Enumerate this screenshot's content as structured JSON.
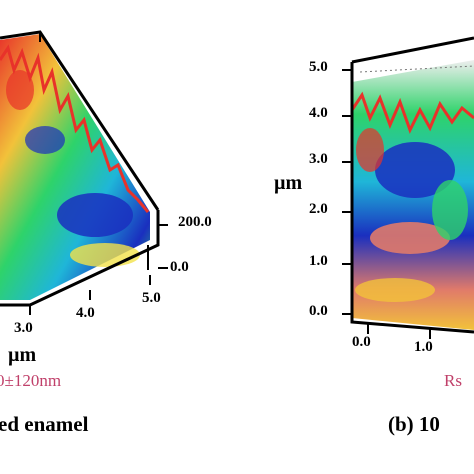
{
  "left_panel": {
    "z_ticks": [
      "200.0",
      "0.0"
    ],
    "x_ticks": [
      "3.0",
      "4.0",
      "5.0"
    ],
    "axis_unit": "µm",
    "roughness": "0±120nm",
    "caption": "ed enamel"
  },
  "right_panel": {
    "y_ticks": [
      "5.0",
      "4.0",
      "3.0",
      "2.0",
      "1.0",
      "0.0"
    ],
    "x_ticks": [
      "0.0",
      "1.0"
    ],
    "axis_unit": "µm",
    "roughness": "Rs",
    "caption": "(b) 10"
  },
  "colors": {
    "frame": "#000000",
    "roughness_text": "#c0406a",
    "surface_low": "#1a2fbf",
    "surface_mid": "#2ed36a",
    "surface_high": "#e8322a"
  }
}
